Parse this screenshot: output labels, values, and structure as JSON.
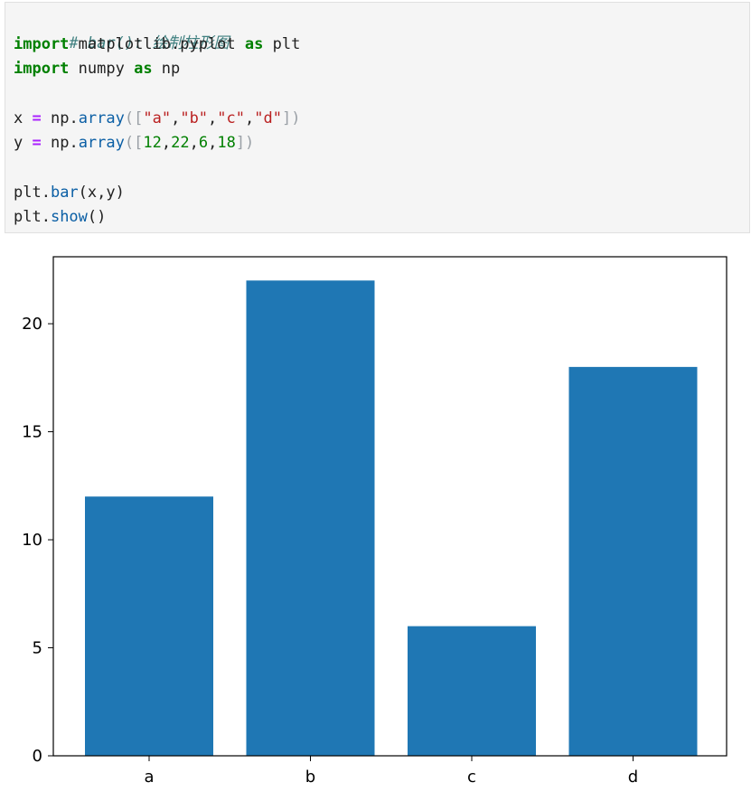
{
  "code": {
    "comment": "# bar(): 绘制柱形图",
    "line_import1": {
      "kw1": "import",
      "mod": " matplotlib.pyplot ",
      "kw2": "as",
      "alias": " plt"
    },
    "line_import2": {
      "kw1": "import",
      "mod": " numpy ",
      "kw2": "as",
      "alias": " np"
    },
    "line_x": {
      "var": "x ",
      "eq": "=",
      "pre": " np.",
      "fn": "array",
      "open": "([",
      "s1": "\"a\"",
      "c1": ",",
      "s2": "\"b\"",
      "c2": ",",
      "s3": "\"c\"",
      "c3": ",",
      "s4": "\"d\"",
      "close": "])"
    },
    "line_y": {
      "var": "y ",
      "eq": "=",
      "pre": " np.",
      "fn": "array",
      "open": "([",
      "n1": "12",
      "c1": ",",
      "n2": "22",
      "c2": ",",
      "n3": "6",
      "c3": ",",
      "n4": "18",
      "close": "])"
    },
    "line_bar": {
      "pre": "plt.",
      "fn": "bar",
      "args": "(x,y)"
    },
    "line_show": {
      "pre": "plt.",
      "fn": "show",
      "args": "()"
    }
  },
  "colors": {
    "bar": "#1f77b4",
    "axis": "#000000"
  },
  "chart_data": {
    "type": "bar",
    "categories": [
      "a",
      "b",
      "c",
      "d"
    ],
    "values": [
      12,
      22,
      6,
      18
    ],
    "yticks": [
      0,
      5,
      10,
      15,
      20
    ],
    "ylim": [
      0,
      23.1
    ],
    "title": "",
    "xlabel": "",
    "ylabel": "",
    "grid": false
  }
}
